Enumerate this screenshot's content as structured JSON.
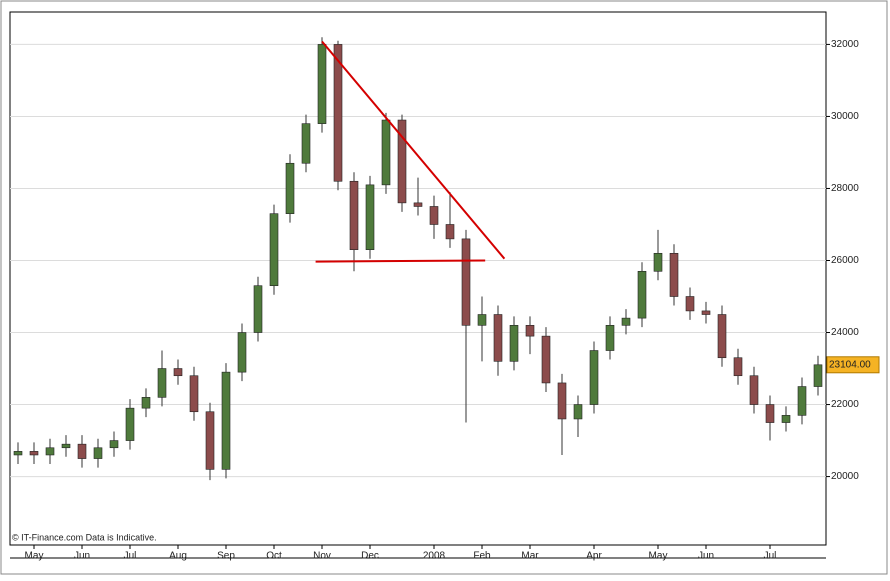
{
  "chart_data": {
    "type": "candlestick",
    "categories": [
      null,
      "May",
      null,
      null,
      "Jun",
      null,
      null,
      "Jul",
      null,
      null,
      "Aug",
      null,
      null,
      "Sep",
      null,
      null,
      "Oct",
      null,
      null,
      "Nov",
      null,
      null,
      "Dec",
      null,
      null,
      null,
      "2008",
      null,
      null,
      "Feb",
      null,
      null,
      "Mar",
      null,
      null,
      null,
      "Apr",
      null,
      null,
      null,
      "May",
      null,
      null,
      "Jun",
      null,
      null,
      null,
      "Jul",
      null,
      null,
      null
    ],
    "open": [
      20600,
      20700,
      20600,
      20800,
      20900,
      20500,
      20800,
      21000,
      21900,
      22200,
      23000,
      22800,
      21800,
      20200,
      22900,
      24000,
      25300,
      27300,
      28700,
      29800,
      32000,
      28200,
      26300,
      28100,
      29900,
      27600,
      27500,
      27000,
      26600,
      24200,
      24500,
      23200,
      24200,
      23900,
      22600,
      21600,
      22000,
      23500,
      24200,
      24400,
      25700,
      26200,
      25000,
      24600,
      24500,
      23300,
      22800,
      22000,
      21500,
      21700,
      22500
    ],
    "high": [
      20950,
      20950,
      21050,
      21150,
      21150,
      21050,
      21250,
      22150,
      22450,
      23500,
      23250,
      23050,
      22050,
      23150,
      24250,
      25550,
      27550,
      28950,
      30050,
      32200,
      32100,
      28450,
      28350,
      30100,
      30050,
      28300,
      27800,
      27900,
      26850,
      25000,
      24750,
      24450,
      24450,
      24150,
      22850,
      22250,
      23750,
      24450,
      24650,
      25950,
      26850,
      26450,
      25250,
      24850,
      24750,
      23550,
      23050,
      22250,
      21950,
      22750,
      23354
    ],
    "low": [
      20350,
      20350,
      20350,
      20550,
      20250,
      20250,
      20550,
      20750,
      21650,
      21950,
      22550,
      21550,
      19900,
      19950,
      22650,
      23750,
      25050,
      27050,
      28450,
      29550,
      27950,
      25700,
      26050,
      27850,
      27350,
      27250,
      26600,
      26350,
      21500,
      23200,
      22800,
      22950,
      23400,
      22350,
      20600,
      21100,
      21750,
      23250,
      23950,
      24150,
      25450,
      24750,
      24350,
      24250,
      23050,
      22550,
      21750,
      21000,
      21250,
      21450,
      22250
    ],
    "close": [
      20700,
      20600,
      20800,
      20900,
      20500,
      20800,
      21000,
      21900,
      22200,
      23000,
      22800,
      21800,
      20200,
      22900,
      24000,
      25300,
      27300,
      28700,
      29800,
      32000,
      28200,
      26300,
      28100,
      29900,
      27600,
      27500,
      27000,
      26600,
      24200,
      24500,
      23200,
      24200,
      23900,
      22600,
      21600,
      22000,
      23500,
      24200,
      24400,
      25700,
      26200,
      25000,
      24600,
      24500,
      23300,
      22800,
      22000,
      21500,
      21700,
      22500,
      23104
    ],
    "up_color": "#4f7a3c",
    "down_color": "#8c4c4c",
    "ylim": [
      18100,
      32900
    ],
    "yticks": [
      20000,
      22000,
      24000,
      26000,
      28000,
      30000,
      32000
    ],
    "grid": true,
    "last_price": {
      "value": 23104,
      "label": "23104.00"
    },
    "trendlines": [
      {
        "x": [
          19.0,
          30.4
        ],
        "y": [
          32080,
          26050
        ],
        "color": "#d40000"
      },
      {
        "x": [
          18.6,
          29.2
        ],
        "y": [
          25970,
          26000
        ],
        "color": "#d40000"
      }
    ],
    "footnote": "© IT-Finance.com Data is Indicative."
  }
}
